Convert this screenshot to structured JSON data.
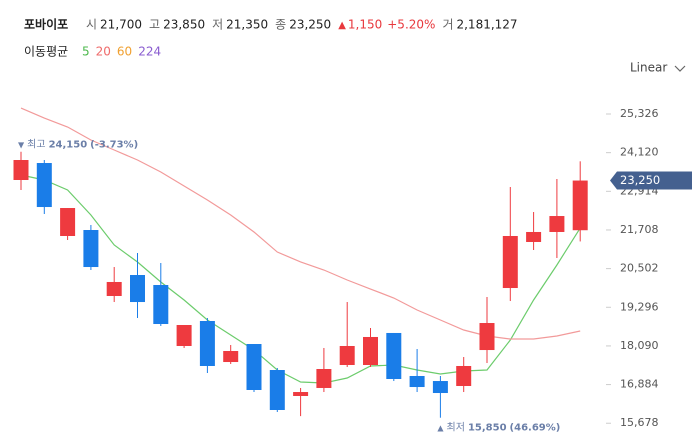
{
  "header": {
    "name": "포바이포",
    "items": [
      {
        "label": "시",
        "value": "21,700"
      },
      {
        "label": "고",
        "value": "23,850"
      },
      {
        "label": "저",
        "value": "21,350"
      },
      {
        "label": "종",
        "value": "23,250"
      }
    ],
    "change_arrow": "▲",
    "change": "1,150",
    "change_pct": "+5.20%",
    "volume_label": "거",
    "volume": "2,181,127",
    "ma_title": "이동평균",
    "ma_legend": [
      {
        "name": "5",
        "color": "#4cb84c"
      },
      {
        "name": "20",
        "color": "#ef6b6b"
      },
      {
        "name": "60",
        "color": "#f0a030"
      },
      {
        "name": "224",
        "color": "#8a5cd0"
      }
    ],
    "scale": "Linear"
  },
  "chart_data": {
    "type": "candlestick",
    "up_color": "#ee3a3f",
    "down_color": "#1a7de8",
    "open": [
      23267,
      23797,
      21520,
      21707,
      19648,
      20303,
      19991,
      18088,
      18868,
      17588,
      18150,
      17339,
      16528,
      16778,
      17495,
      17495,
      18494,
      17152,
      16995,
      16840,
      17962,
      19897,
      21333,
      21645,
      21700
    ],
    "high": [
      24150,
      23891,
      22393,
      21863,
      20552,
      20989,
      20677,
      18743,
      18961,
      18119,
      18150,
      17401,
      16778,
      18026,
      19460,
      18649,
      18494,
      17994,
      17152,
      17744,
      19616,
      23048,
      22268,
      23298,
      23850
    ],
    "low": [
      22955,
      22206,
      21395,
      20459,
      19460,
      18961,
      18712,
      18026,
      17245,
      17526,
      16652,
      16029,
      15900,
      16652,
      17432,
      17432,
      16995,
      16652,
      15850,
      16652,
      17557,
      19491,
      21083,
      20833,
      21350
    ],
    "close": [
      23891,
      22424,
      22393,
      20552,
      20085,
      19460,
      18774,
      18743,
      17464,
      17932,
      16715,
      16091,
      16652,
      17370,
      18088,
      18369,
      17058,
      16808,
      16621,
      17464,
      18805,
      21520,
      21645,
      22143,
      23250
    ],
    "moving_averages": [
      {
        "name": "5",
        "color": "#6ccc6c",
        "values": [
          23423,
          23267,
          22955,
          22175,
          21239,
          20709,
          20085,
          19523,
          18899,
          18431,
          17963,
          17339,
          16964,
          16933,
          17089,
          17464,
          17495,
          17339,
          17214,
          17308,
          17339,
          18275,
          19523,
          20615,
          21769
        ]
      },
      {
        "name": "20",
        "color": "#f29a9a",
        "values": [
          25513,
          25201,
          24920,
          24515,
          24203,
          23891,
          23516,
          23080,
          22643,
          22175,
          21644,
          21020,
          20709,
          20459,
          20147,
          19866,
          19585,
          19211,
          18899,
          18587,
          18400,
          18306,
          18306,
          18400,
          18556
        ]
      }
    ],
    "ylim": [
      15155,
      26075
    ],
    "yticks": [
      {
        "value": 15678,
        "label": "15,678"
      },
      {
        "value": 16884,
        "label": "16,884"
      },
      {
        "value": 18090,
        "label": "18,090"
      },
      {
        "value": 19296,
        "label": "19,296"
      },
      {
        "value": 20502,
        "label": "20,502"
      },
      {
        "value": 21708,
        "label": "21,708"
      },
      {
        "value": 22914,
        "label": "22,914"
      },
      {
        "value": 24120,
        "label": "24,120"
      },
      {
        "value": 25326,
        "label": "25,326"
      }
    ],
    "grid": false,
    "last_label": "23,250",
    "last_color": "#44608f",
    "annotations": [
      {
        "marker": "▼",
        "text": "최고",
        "value": 24150,
        "value_label": "24,150",
        "change": "(-3.73%)"
      },
      {
        "marker": "▲",
        "text": "최저",
        "value": 15850,
        "value_label": "15,850",
        "change": "(46.69%)"
      }
    ]
  }
}
